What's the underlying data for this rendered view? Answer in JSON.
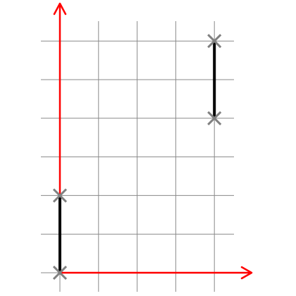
{
  "colors": {
    "background": "#ffffff",
    "grid": "#8a8a8a",
    "axis": "#ff0000",
    "segment": "#000000",
    "marker": "#808080"
  },
  "grid": {
    "x_range": [
      0,
      4
    ],
    "y_range": [
      0,
      6
    ]
  },
  "segments": [
    {
      "from": [
        0,
        0
      ],
      "to": [
        0,
        2
      ]
    },
    {
      "from": [
        4,
        4
      ],
      "to": [
        4,
        6
      ]
    }
  ],
  "markers": [
    [
      0,
      0
    ],
    [
      0,
      2
    ],
    [
      4,
      4
    ],
    [
      4,
      6
    ]
  ],
  "marker_symbol": "x-mark"
}
